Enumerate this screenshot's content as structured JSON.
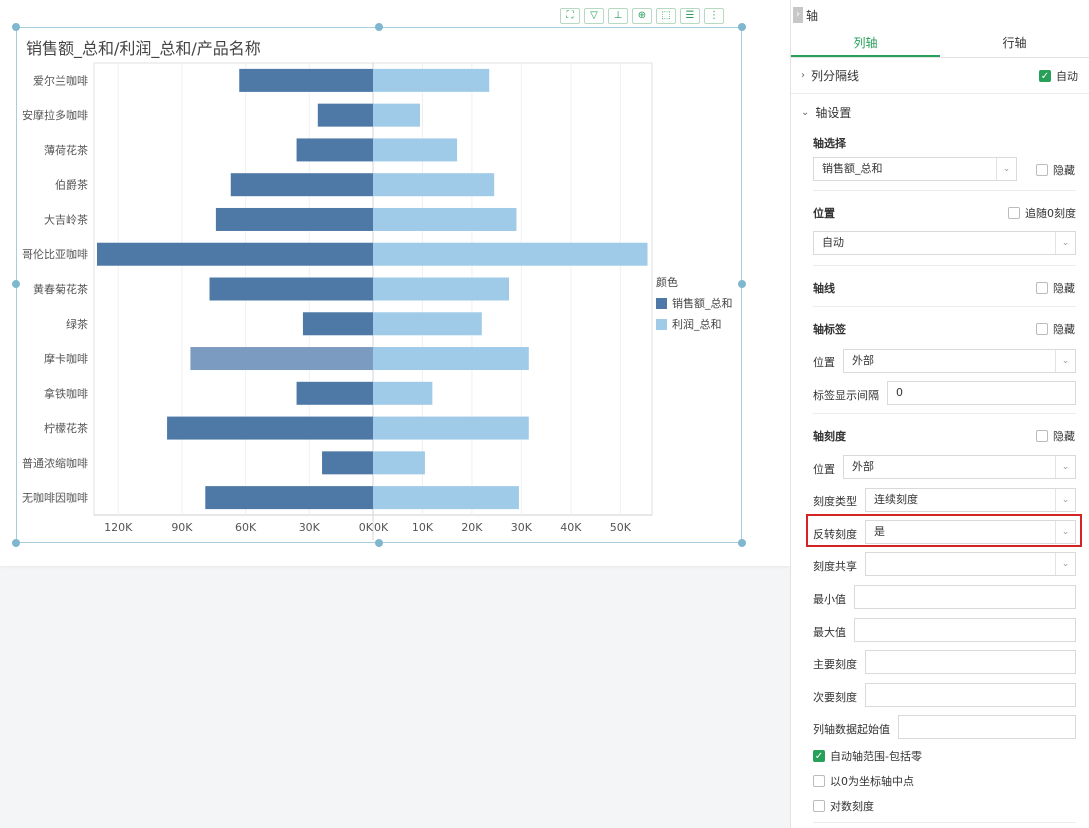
{
  "chart": {
    "title": "销售额_总和/利润_总和/产品名称",
    "legend_title": "颜色",
    "series_names": [
      "销售额_总和",
      "利润_总和"
    ],
    "colors": {
      "sales": "#4e79a7",
      "profit": "#a0cbe8",
      "highlight": "#7b9bc1"
    },
    "toolbar_icons": [
      "expand-icon",
      "filter-icon",
      "axis-swap-icon",
      "zoom-icon",
      "select-icon",
      "list-icon",
      "more-icon"
    ]
  },
  "chart_data": {
    "type": "bar",
    "orientation": "horizontal-diverging",
    "categories": [
      "爱尔兰咖啡",
      "安摩拉多咖啡",
      "薄荷花茶",
      "伯爵茶",
      "大吉岭茶",
      "哥伦比亚咖啡",
      "黄春菊花茶",
      "绿茶",
      "摩卡咖啡",
      "拿铁咖啡",
      "柠檬花茶",
      "普通浓缩咖啡",
      "无咖啡因咖啡"
    ],
    "series": [
      {
        "name": "销售额_总和",
        "values": [
          63000,
          26000,
          36000,
          67000,
          74000,
          130000,
          77000,
          33000,
          86000,
          36000,
          97000,
          24000,
          79000
        ]
      },
      {
        "name": "利润_总和",
        "values": [
          23500,
          9500,
          17000,
          24500,
          29000,
          55500,
          27500,
          22000,
          31500,
          12000,
          31500,
          10500,
          29500
        ]
      }
    ],
    "left_ticks": [
      "120K",
      "90K",
      "60K",
      "30K",
      "0K"
    ],
    "right_ticks": [
      "0K",
      "10K",
      "20K",
      "30K",
      "40K",
      "50K"
    ],
    "left_range": [
      0,
      130000
    ],
    "right_range": [
      0,
      56000
    ],
    "highlighted_index": 8,
    "legend_position": "right"
  },
  "panel": {
    "header": "轴",
    "tabs": [
      "列轴",
      "行轴"
    ],
    "col_divider": {
      "label": "列分隔线",
      "auto_label": "自动",
      "auto_checked": true
    },
    "axis_settings": "轴设置",
    "axis_select": {
      "label": "轴选择",
      "value": "销售额_总和",
      "hide_label": "隐藏"
    },
    "position": {
      "label": "位置",
      "follow_label": "追随0刻度",
      "value": "自动"
    },
    "axis_line": {
      "label": "轴线",
      "hide_label": "隐藏"
    },
    "axis_label": {
      "label": "轴标签",
      "hide_label": "隐藏",
      "pos_label": "位置",
      "pos_value": "外部",
      "interval_label": "标签显示间隔",
      "interval_value": "0"
    },
    "axis_scale": {
      "label": "轴刻度",
      "hide_label": "隐藏",
      "pos_label": "位置",
      "pos_value": "外部",
      "type_label": "刻度类型",
      "type_value": "连续刻度",
      "reverse_label": "反转刻度",
      "reverse_value": "是",
      "share_label": "刻度共享",
      "share_value": "",
      "min_label": "最小值",
      "max_label": "最大值",
      "major_label": "主要刻度",
      "minor_label": "次要刻度",
      "start_label": "列轴数据起始值"
    },
    "checks": [
      {
        "label": "自动轴范围-包括零",
        "checked": true
      },
      {
        "label": "以0为坐标轴中点",
        "checked": false
      },
      {
        "label": "对数刻度",
        "checked": false
      }
    ]
  }
}
